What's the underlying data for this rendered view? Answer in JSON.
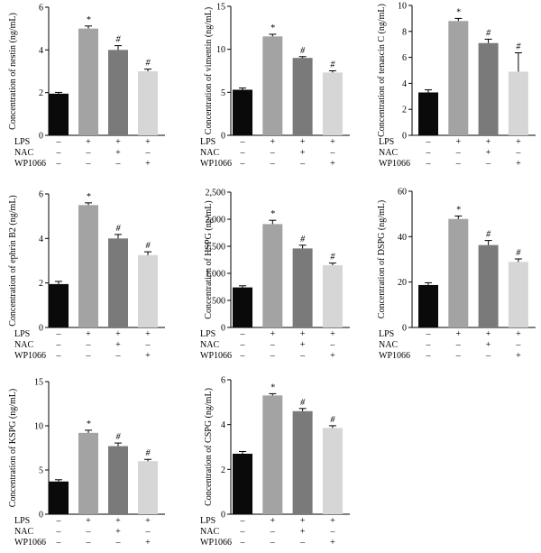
{
  "figure": {
    "conditions": [
      {
        "label": "LPS",
        "marks": [
          "–",
          "+",
          "+",
          "+"
        ]
      },
      {
        "label": "NAC",
        "marks": [
          "–",
          "–",
          "+",
          "–"
        ]
      },
      {
        "label": "WP1066",
        "marks": [
          "–",
          "–",
          "–",
          "+"
        ]
      }
    ],
    "bar_colors": [
      "#0a0a0a",
      "#a3a3a3",
      "#7a7a7a",
      "#d6d6d6"
    ]
  },
  "chart_data": [
    {
      "type": "bar",
      "ylabel": "Concentration of nestin  (ng/mL)",
      "ylim": [
        0,
        6
      ],
      "yticks": [
        "0",
        "2",
        "4",
        "6"
      ],
      "values": [
        1.95,
        5.0,
        4.0,
        3.0
      ],
      "errors": [
        0.06,
        0.12,
        0.2,
        0.1
      ],
      "annotations": [
        "",
        "*",
        "#",
        "#"
      ]
    },
    {
      "type": "bar",
      "ylabel": "Concentration of vimentin (ng/mL)",
      "ylim": [
        0,
        15
      ],
      "yticks": [
        "0",
        "5",
        "10",
        "15"
      ],
      "values": [
        5.3,
        11.5,
        9.0,
        7.3
      ],
      "errors": [
        0.2,
        0.25,
        0.15,
        0.2
      ],
      "annotations": [
        "",
        "*",
        "#",
        "#"
      ]
    },
    {
      "type": "bar",
      "ylabel": "Concentration of tenascin C (ng/mL)",
      "ylim": [
        0,
        10
      ],
      "yticks": [
        "0",
        "2",
        "4",
        "6",
        "8",
        "10"
      ],
      "values": [
        3.3,
        8.8,
        7.1,
        4.9
      ],
      "errors": [
        0.2,
        0.2,
        0.3,
        1.45
      ],
      "annotations": [
        "",
        "*",
        "#",
        "#"
      ]
    },
    {
      "type": "bar",
      "ylabel": "Concentration of ephrin B2 (ng/mL)",
      "ylim": [
        0,
        6
      ],
      "yticks": [
        "0",
        "2",
        "4",
        "6"
      ],
      "values": [
        1.95,
        5.5,
        4.0,
        3.25
      ],
      "errors": [
        0.12,
        0.1,
        0.18,
        0.15
      ],
      "annotations": [
        "",
        "*",
        "#",
        "#"
      ]
    },
    {
      "type": "bar",
      "ylabel": "Concentration of HSPG (ng/mL)",
      "ylim": [
        0,
        2500
      ],
      "yticks": [
        "0",
        "500",
        "1,000",
        "1,500",
        "2,000",
        "2,500"
      ],
      "values": [
        740,
        1910,
        1460,
        1150
      ],
      "errors": [
        30,
        70,
        60,
        40
      ],
      "annotations": [
        "",
        "*",
        "#",
        "#"
      ]
    },
    {
      "type": "bar",
      "ylabel": "Concentration of DSPG (ng/mL)",
      "ylim": [
        0,
        60
      ],
      "yticks": [
        "0",
        "20",
        "40",
        "60"
      ],
      "values": [
        18.7,
        47.8,
        36.3,
        28.9
      ],
      "errors": [
        1.0,
        1.3,
        2.0,
        1.3
      ],
      "annotations": [
        "",
        "*",
        "#",
        "#"
      ]
    },
    {
      "type": "bar",
      "ylabel": "Concentration of KSPG (ng/mL)",
      "ylim": [
        0,
        15
      ],
      "yticks": [
        "0",
        "5",
        "10",
        "15"
      ],
      "values": [
        3.7,
        9.2,
        7.7,
        6.0
      ],
      "errors": [
        0.2,
        0.3,
        0.35,
        0.2
      ],
      "annotations": [
        "",
        "*",
        "#",
        "#"
      ]
    },
    {
      "type": "bar",
      "ylabel": "Concentration of CSPG (ng/mL)",
      "ylim": [
        0,
        6
      ],
      "yticks": [
        "0",
        "2",
        "4",
        "6"
      ],
      "values": [
        2.7,
        5.3,
        4.6,
        3.85
      ],
      "errors": [
        0.1,
        0.08,
        0.12,
        0.1
      ],
      "annotations": [
        "",
        "*",
        "#",
        "#"
      ]
    }
  ]
}
